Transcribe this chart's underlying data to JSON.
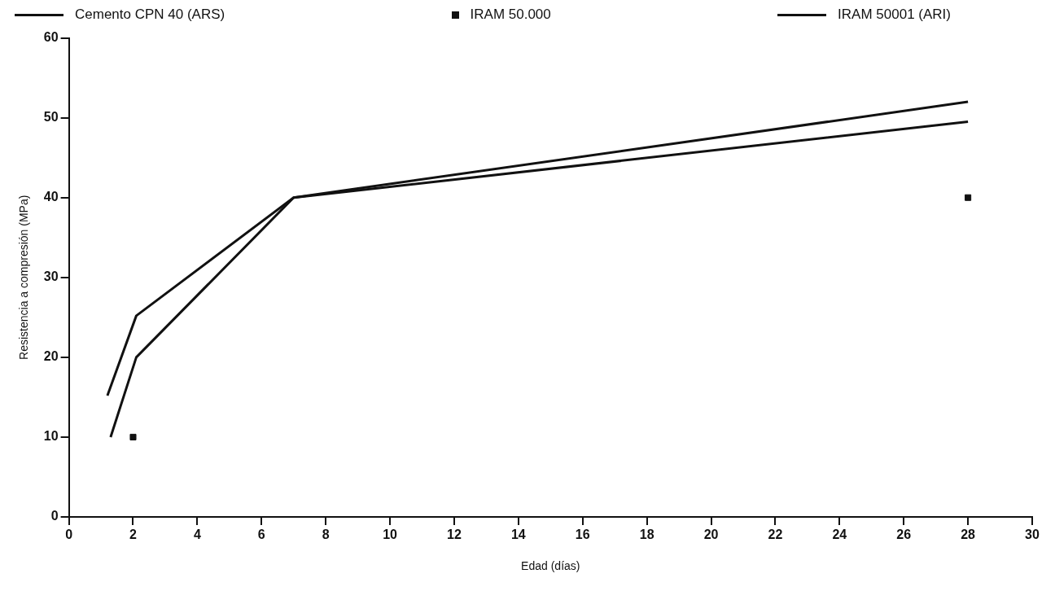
{
  "chart_data": {
    "type": "line",
    "xlabel": "Edad (días)",
    "ylabel": "Resistencia a compresión (MPa)",
    "xlim": [
      0,
      30
    ],
    "xticks": [
      0,
      2,
      4,
      6,
      8,
      10,
      12,
      14,
      16,
      18,
      20,
      22,
      24,
      26,
      28,
      30
    ],
    "ylim": [
      0,
      60
    ],
    "yticks": [
      0,
      10,
      20,
      30,
      40,
      50,
      60
    ],
    "grid": false,
    "legend": "top",
    "line_style": "solid",
    "series": [
      {
        "name": "Cemento CPN 40 (ARS)",
        "color": "#111111",
        "type": "line",
        "marker": "none",
        "x": [
          1.3,
          2.1,
          7,
          28
        ],
        "values": [
          10,
          20,
          40,
          52
        ]
      },
      {
        "name": "IRAM 50.000",
        "color": "#111111",
        "type": "scatter",
        "marker": "square",
        "x": [
          2,
          28
        ],
        "values": [
          10,
          40
        ]
      },
      {
        "name": "IRAM 50001 (ARI)",
        "color": "#111111",
        "type": "line",
        "marker": "none",
        "x": [
          1.2,
          2.1,
          7,
          28
        ],
        "values": [
          15.2,
          25.2,
          40,
          49.5
        ]
      }
    ]
  }
}
